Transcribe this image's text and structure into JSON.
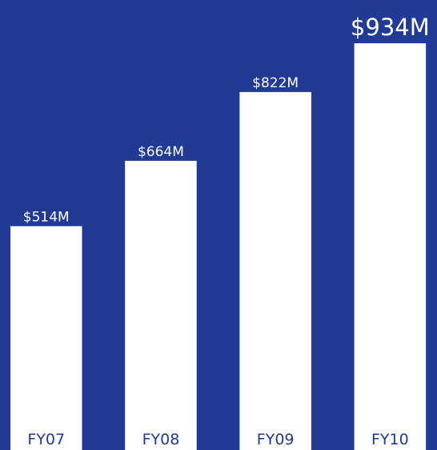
{
  "chart_data": {
    "type": "bar",
    "categories": [
      "FY07",
      "FY08",
      "FY09",
      "FY10"
    ],
    "values": [
      514,
      664,
      822,
      934
    ],
    "value_labels": [
      "$514M",
      "$664M",
      "$822M",
      "$934M"
    ],
    "color": "#ffffff"
  }
}
